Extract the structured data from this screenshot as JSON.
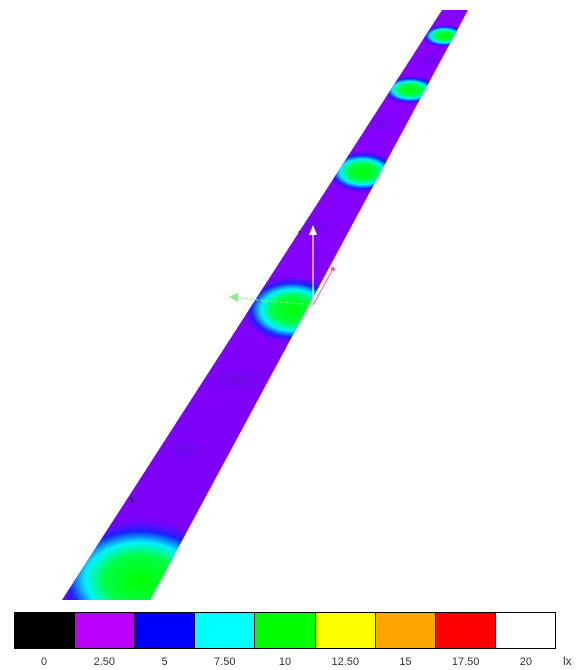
{
  "legend": {
    "unit": "lx",
    "bins": [
      {
        "color": "#000000"
      },
      {
        "color": "#bb00ff"
      },
      {
        "color": "#0000ff"
      },
      {
        "color": "#00ffff"
      },
      {
        "color": "#00ff00"
      },
      {
        "color": "#ffff00"
      },
      {
        "color": "#ffa500"
      },
      {
        "color": "#ff0000"
      },
      {
        "color": "#ffffff"
      }
    ],
    "ticks": [
      "0",
      "2.50",
      "5",
      "7.50",
      "10",
      "12.50",
      "15",
      "17.50",
      "20"
    ]
  },
  "scene": {
    "base_color": "#8a00ff",
    "mid_color": "#3a00ff",
    "axis_y_color": "#ffffff",
    "axis_x_color": "#88ee88",
    "axis_z_color": "#ff55aa"
  }
}
